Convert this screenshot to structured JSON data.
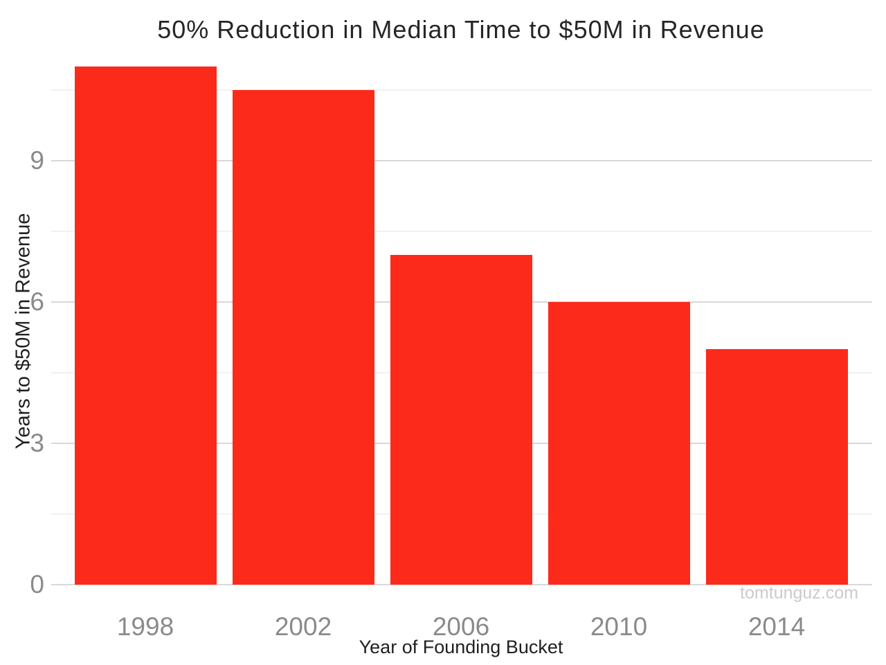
{
  "chart_data": {
    "type": "bar",
    "title": "50% Reduction in Median Time to $50M in Revenue",
    "xlabel": "Year of Founding Bucket",
    "ylabel": "Years to $50M in Revenue",
    "categories": [
      "1998",
      "2002",
      "2006",
      "2010",
      "2014"
    ],
    "values": [
      11,
      10.5,
      7,
      6,
      5
    ],
    "ylim": [
      0,
      11.5
    ],
    "yticks_major": [
      0,
      3,
      6,
      9
    ],
    "yticks_minor": [
      1.5,
      4.5,
      7.5,
      10.5
    ],
    "grid": "horizontal-only",
    "legend": "none",
    "watermark": "tomtunguz.com",
    "colors": {
      "bar": "#fb2a1b",
      "grid_major": "#d8d8d8",
      "grid_minor": "#f1f1f1",
      "tick_label": "#8a8a8a",
      "axis_label": "#1f1f1f",
      "title": "#262626",
      "watermark": "#cbcbcb",
      "background": "#ffffff"
    }
  }
}
